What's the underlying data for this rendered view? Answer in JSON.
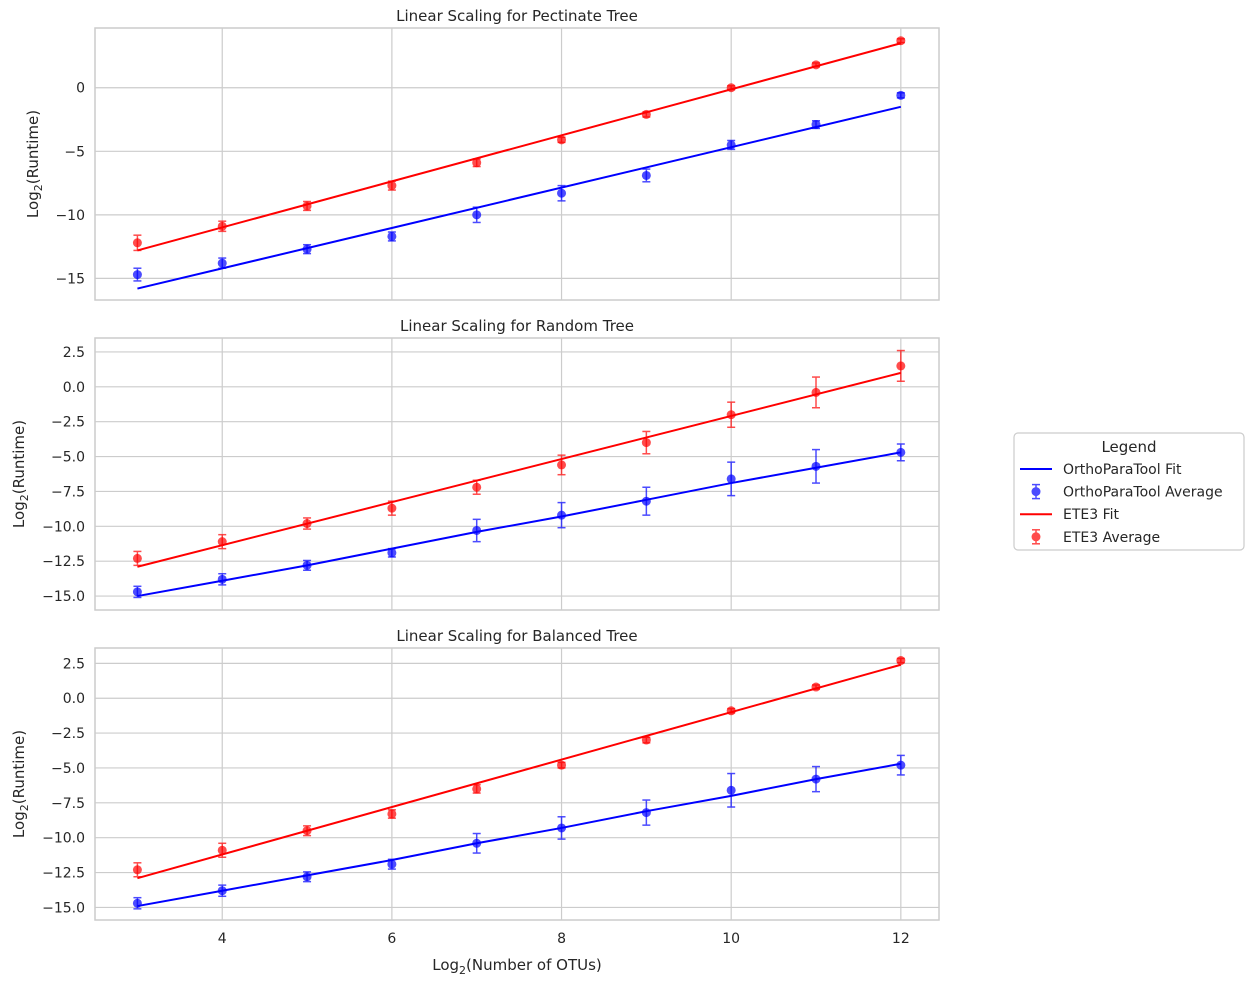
{
  "chart_data": [
    {
      "type": "line",
      "title": "Linear Scaling for Pectinate Tree",
      "ylabel": "Log",
      "ylabel_sub": "2",
      "ylabel_rest": "(Runtime)",
      "xlim": [
        2.5,
        12.45
      ],
      "ylim": [
        -16.7,
        4.7
      ],
      "yticks": [
        -15,
        -10,
        -5,
        0
      ],
      "ytick_labels": [
        "−15",
        "−10",
        "−5",
        "0"
      ],
      "x": [
        3,
        4,
        5,
        6,
        7,
        8,
        9,
        10,
        11,
        12
      ],
      "series": [
        {
          "kind": "fit",
          "color": "#0000ff",
          "fit_line": [
            [
              3,
              -15.8
            ],
            [
              12,
              -1.5
            ]
          ]
        },
        {
          "kind": "average",
          "color": "#0000ff",
          "values": [
            -14.7,
            -13.8,
            -12.7,
            -11.7,
            -10.0,
            -8.3,
            -6.9,
            -4.5,
            -2.9,
            -0.6
          ],
          "err": [
            0.5,
            0.4,
            0.35,
            0.35,
            0.6,
            0.6,
            0.5,
            0.35,
            0.3,
            0.2
          ]
        },
        {
          "kind": "fit",
          "color": "#ff0000",
          "fit_line": [
            [
              3,
              -12.8
            ],
            [
              12,
              3.5
            ]
          ]
        },
        {
          "kind": "average",
          "color": "#ff0000",
          "values": [
            -12.2,
            -10.9,
            -9.3,
            -7.7,
            -5.9,
            -4.1,
            -2.1,
            0.0,
            1.8,
            3.7
          ],
          "err": [
            0.6,
            0.4,
            0.35,
            0.35,
            0.3,
            0.2,
            0.2,
            0.15,
            0.15,
            0.15
          ]
        }
      ]
    },
    {
      "type": "line",
      "title": "Linear Scaling for Random Tree",
      "ylabel": "Log",
      "ylabel_sub": "2",
      "ylabel_rest": "(Runtime)",
      "xlim": [
        2.5,
        12.45
      ],
      "ylim": [
        -16.0,
        3.5
      ],
      "yticks": [
        -15.0,
        -12.5,
        -10.0,
        -7.5,
        -5.0,
        -2.5,
        0.0,
        2.5
      ],
      "ytick_labels": [
        "−15.0",
        "−12.5",
        "−10.0",
        "−7.5",
        "−5.0",
        "−2.5",
        "0.0",
        "2.5"
      ],
      "x": [
        3,
        4,
        5,
        6,
        7,
        8,
        9,
        10,
        11,
        12
      ],
      "series": [
        {
          "kind": "fit",
          "color": "#0000ff",
          "fit_line": [
            [
              3,
              -15.0
            ],
            [
              4,
              -13.9
            ],
            [
              5,
              -12.8
            ],
            [
              6,
              -11.6
            ],
            [
              7,
              -10.4
            ],
            [
              8,
              -9.3
            ],
            [
              9,
              -8.1
            ],
            [
              10,
              -6.9
            ],
            [
              11,
              -5.8
            ],
            [
              12,
              -4.7
            ]
          ]
        },
        {
          "kind": "average",
          "color": "#0000ff",
          "values": [
            -14.7,
            -13.8,
            -12.8,
            -11.9,
            -10.3,
            -9.2,
            -8.2,
            -6.6,
            -5.7,
            -4.7
          ],
          "err": [
            0.4,
            0.4,
            0.35,
            0.3,
            0.8,
            0.9,
            1.0,
            1.2,
            1.2,
            0.6
          ]
        },
        {
          "kind": "fit",
          "color": "#ff0000",
          "fit_line": [
            [
              3,
              -12.9
            ],
            [
              12,
              1.0
            ]
          ]
        },
        {
          "kind": "average",
          "color": "#ff0000",
          "values": [
            -12.3,
            -11.1,
            -9.8,
            -8.7,
            -7.2,
            -5.6,
            -4.0,
            -2.0,
            -0.4,
            1.5
          ],
          "err": [
            0.5,
            0.5,
            0.4,
            0.5,
            0.5,
            0.7,
            0.8,
            0.9,
            1.1,
            1.1
          ]
        }
      ]
    },
    {
      "type": "line",
      "title": "Linear Scaling for Balanced Tree",
      "ylabel": "Log",
      "ylabel_sub": "2",
      "ylabel_rest": "(Runtime)",
      "xlim": [
        2.5,
        12.45
      ],
      "ylim": [
        -15.9,
        3.6
      ],
      "yticks": [
        -15.0,
        -12.5,
        -10.0,
        -7.5,
        -5.0,
        -2.5,
        0.0,
        2.5
      ],
      "ytick_labels": [
        "−15.0",
        "−12.5",
        "−10.0",
        "−7.5",
        "−5.0",
        "−2.5",
        "0.0",
        "2.5"
      ],
      "xticks": [
        4,
        6,
        8,
        10,
        12
      ],
      "xlabel": "Log",
      "xlabel_sub": "2",
      "xlabel_rest": "(Number of OTUs)",
      "x": [
        3,
        4,
        5,
        6,
        7,
        8,
        9,
        10,
        11,
        12
      ],
      "series": [
        {
          "kind": "fit",
          "color": "#0000ff",
          "fit_line": [
            [
              3,
              -14.9
            ],
            [
              4,
              -13.8
            ],
            [
              5,
              -12.7
            ],
            [
              6,
              -11.6
            ],
            [
              7,
              -10.4
            ],
            [
              8,
              -9.3
            ],
            [
              9,
              -8.1
            ],
            [
              10,
              -7.0
            ],
            [
              11,
              -5.8
            ],
            [
              12,
              -4.7
            ]
          ]
        },
        {
          "kind": "average",
          "color": "#0000ff",
          "values": [
            -14.7,
            -13.8,
            -12.8,
            -11.9,
            -10.4,
            -9.3,
            -8.2,
            -6.6,
            -5.8,
            -4.8
          ],
          "err": [
            0.4,
            0.4,
            0.35,
            0.35,
            0.7,
            0.8,
            0.9,
            1.2,
            0.9,
            0.7
          ]
        },
        {
          "kind": "fit",
          "color": "#ff0000",
          "fit_line": [
            [
              3,
              -12.9
            ],
            [
              12,
              2.4
            ]
          ]
        },
        {
          "kind": "average",
          "color": "#ff0000",
          "values": [
            -12.3,
            -10.9,
            -9.5,
            -8.3,
            -6.5,
            -4.8,
            -3.0,
            -0.9,
            0.8,
            2.7
          ],
          "err": [
            0.5,
            0.5,
            0.35,
            0.3,
            0.3,
            0.2,
            0.2,
            0.15,
            0.15,
            0.15
          ]
        }
      ]
    }
  ],
  "legend": {
    "title": "Legend",
    "placement": "right",
    "entries": [
      {
        "label": "OrthoParaTool Fit",
        "kind": "line",
        "color": "#0000ff"
      },
      {
        "label": "OrthoParaTool Average",
        "kind": "marker",
        "color": "#0000ff"
      },
      {
        "label": "ETE3 Fit",
        "kind": "line",
        "color": "#ff0000"
      },
      {
        "label": "ETE3 Average",
        "kind": "marker",
        "color": "#ff0000"
      }
    ]
  },
  "grid": true
}
